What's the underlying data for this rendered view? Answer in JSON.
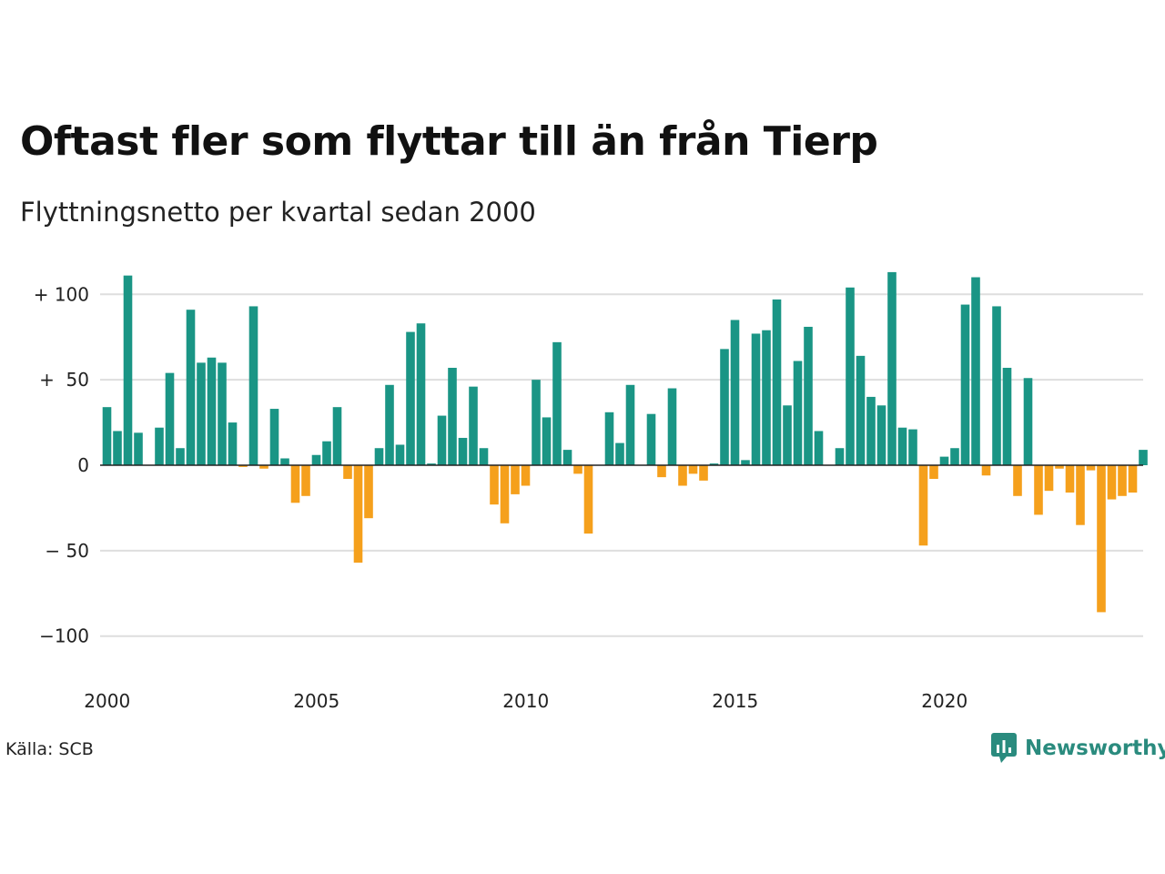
{
  "chart_data": {
    "type": "bar",
    "title": "Oftast fler som flyttar till än från Tierp",
    "subtitle": "Flyttningsnetto per kvartal sedan 2000",
    "x_start": "2000 Q1",
    "x_tick_labels": [
      "2000",
      "2005",
      "2010",
      "2015",
      "2020"
    ],
    "y_ticks": [
      100,
      50,
      0,
      -50,
      -100
    ],
    "y_tick_labels": [
      "+ 100",
      "+  50",
      "0",
      "− 50",
      "−100"
    ],
    "ylim": [
      -110,
      115
    ],
    "grid": true,
    "colors": {
      "positive": "#1a9585",
      "negative": "#f5a01c",
      "grid": "#dedede",
      "zero_line": "#222222"
    },
    "series": [
      {
        "values": [
          34,
          20,
          111,
          19,
          0,
          22,
          54,
          10,
          91,
          60,
          63,
          60,
          25,
          -1,
          93,
          -2,
          33,
          4,
          -22,
          -18,
          6,
          14,
          34,
          -8,
          -57,
          -31,
          10,
          47,
          12,
          78,
          83,
          1,
          29,
          57,
          16,
          46,
          10,
          -23,
          -34,
          -17,
          -12,
          50,
          28,
          72,
          9,
          -5,
          -40,
          0,
          31,
          13,
          47,
          0,
          30,
          -7,
          45,
          -12,
          -5,
          -9,
          1,
          68,
          85,
          3,
          77,
          79,
          97,
          35,
          61,
          81,
          20,
          0,
          10,
          104,
          64,
          40,
          35,
          113,
          22,
          21,
          -47,
          -8,
          5,
          10,
          94,
          110,
          -6,
          93,
          57,
          -18,
          51,
          -29,
          -15,
          -2,
          -16,
          -35,
          -3,
          -86,
          -20,
          -18,
          -16,
          9
        ]
      }
    ]
  },
  "footer": {
    "source": "Källa: SCB",
    "brand": "Newsworthy"
  }
}
